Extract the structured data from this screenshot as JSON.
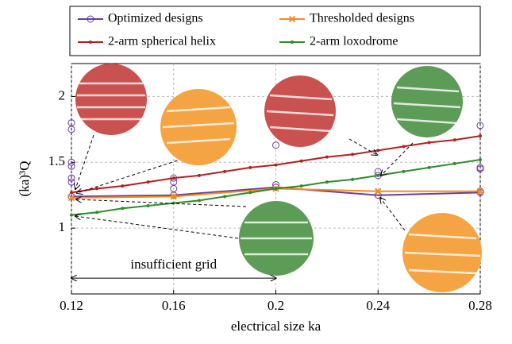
{
  "chart_data": {
    "type": "line",
    "x_label": "electrical size ka",
    "y_label": "(ka)³Q",
    "xlim": [
      0.12,
      0.28
    ],
    "xticks": [
      0.12,
      0.16,
      0.2,
      0.24,
      0.28
    ],
    "ylim": [
      0.5,
      2.25
    ],
    "yticks": [
      1,
      1.5,
      2
    ],
    "grid": true,
    "annotation": "insufficient grid",
    "annotation_range": [
      0.12,
      0.2
    ],
    "annotation_y": 0.62,
    "series": [
      {
        "name": "Optimized designs",
        "color": "#6a3d9a",
        "marker": "circle",
        "x": [
          0.12,
          0.16,
          0.2,
          0.24,
          0.28
        ],
        "values": [
          1.24,
          1.25,
          1.31,
          1.25,
          1.27
        ],
        "points_x": [
          0.12,
          0.12,
          0.12,
          0.12,
          0.12,
          0.12,
          0.16,
          0.16,
          0.16,
          0.16,
          0.2,
          0.2,
          0.2,
          0.24,
          0.24,
          0.28,
          0.28,
          0.28,
          0.28
        ],
        "points_y": [
          1.8,
          1.75,
          1.5,
          1.47,
          1.38,
          1.35,
          1.6,
          1.38,
          1.35,
          1.3,
          1.75,
          1.63,
          1.33,
          1.43,
          1.4,
          1.78,
          1.46,
          1.45,
          1.28
        ]
      },
      {
        "name": "Thresholded designs",
        "color": "#f28e1c",
        "marker": "cross",
        "x": [
          0.12,
          0.16,
          0.2,
          0.24,
          0.28
        ],
        "values": [
          1.23,
          1.24,
          1.3,
          1.28,
          1.28
        ]
      },
      {
        "name": "2-arm spherical helix",
        "color": "#b22222",
        "marker": "dot",
        "x": [
          0.12,
          0.13,
          0.14,
          0.15,
          0.16,
          0.17,
          0.18,
          0.19,
          0.2,
          0.21,
          0.22,
          0.23,
          0.24,
          0.25,
          0.26,
          0.27,
          0.28
        ],
        "values": [
          1.27,
          1.3,
          1.32,
          1.35,
          1.38,
          1.4,
          1.43,
          1.46,
          1.48,
          1.51,
          1.54,
          1.56,
          1.59,
          1.62,
          1.65,
          1.67,
          1.7
        ]
      },
      {
        "name": "2-arm loxodrome",
        "color": "#2e8b2e",
        "marker": "dot",
        "x": [
          0.12,
          0.13,
          0.14,
          0.15,
          0.16,
          0.17,
          0.18,
          0.19,
          0.2,
          0.21,
          0.22,
          0.23,
          0.24,
          0.25,
          0.26,
          0.27,
          0.28
        ],
        "values": [
          1.1,
          1.12,
          1.15,
          1.17,
          1.19,
          1.21,
          1.24,
          1.27,
          1.3,
          1.32,
          1.35,
          1.37,
          1.4,
          1.43,
          1.46,
          1.49,
          1.52
        ]
      }
    ]
  }
}
